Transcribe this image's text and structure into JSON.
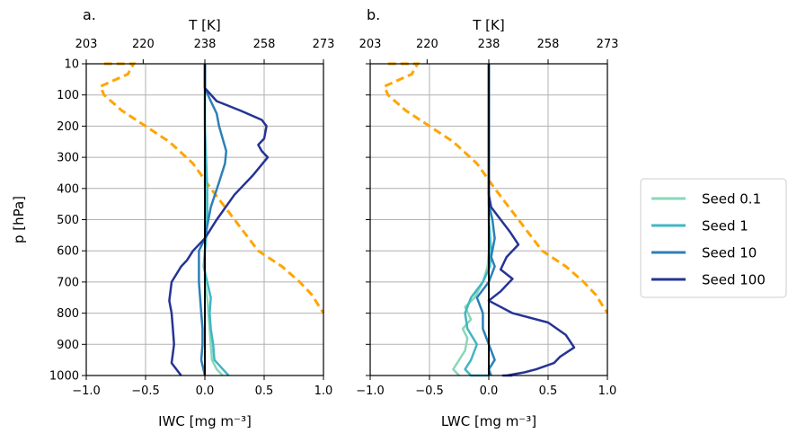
{
  "chart_data": [
    {
      "type": "line",
      "panel_label": "a.",
      "xlabel": "IWC [mg m⁻³]",
      "ylabel": "p [hPa]",
      "top_xlabel": "T [K]",
      "xlim": [
        -1.0,
        1.0
      ],
      "ylim": [
        1000,
        10
      ],
      "x_ticks": [
        "−1.0",
        "−0.5",
        "0.0",
        "0.5",
        "1.0"
      ],
      "y_ticks": [
        "10",
        "100",
        "200",
        "300",
        "400",
        "500",
        "600",
        "700",
        "800",
        "900",
        "1000"
      ],
      "top_ticks": [
        "203",
        "220",
        "238",
        "258",
        "273"
      ],
      "grid": true,
      "zero_line": true,
      "temperature": {
        "color": "#ffa500",
        "style": "dashed",
        "x": [
          -0.85,
          -0.6,
          -0.65,
          -0.88,
          -0.85,
          -0.7,
          -0.5,
          -0.3,
          -0.1,
          0.05,
          0.25,
          0.45,
          0.65,
          0.8,
          0.9,
          1.0
        ],
        "p": [
          10,
          10,
          40,
          75,
          100,
          150,
          200,
          250,
          320,
          400,
          500,
          600,
          650,
          700,
          740,
          800
        ]
      },
      "series": [
        {
          "name": "Seed 0.1",
          "color": "#8ad7b8",
          "x": [
            0.0,
            0.0,
            0.0,
            0.0,
            0.0,
            0.01,
            0.01,
            0.0,
            0.0,
            0.02,
            0.03,
            0.04,
            0.05,
            0.06,
            0.1,
            0.15
          ],
          "p": [
            10,
            80,
            200,
            300,
            400,
            500,
            560,
            600,
            700,
            750,
            800,
            850,
            900,
            950,
            980,
            1000
          ]
        },
        {
          "name": "Seed 1",
          "color": "#41b6c4",
          "x": [
            0.0,
            0.0,
            0.0,
            0.01,
            0.02,
            0.02,
            0.01,
            0.0,
            -0.01,
            0.02,
            0.05,
            0.04,
            0.05,
            0.07,
            0.08,
            0.2
          ],
          "p": [
            10,
            80,
            200,
            300,
            400,
            500,
            560,
            600,
            650,
            700,
            750,
            800,
            850,
            900,
            950,
            1000
          ]
        },
        {
          "name": "Seed 10",
          "color": "#2c7fb8",
          "x": [
            0.0,
            0.0,
            0.05,
            0.1,
            0.12,
            0.15,
            0.18,
            0.17,
            0.12,
            0.05,
            0.0,
            -0.05,
            -0.05,
            -0.03,
            -0.02,
            -0.02,
            -0.03,
            0.0
          ],
          "p": [
            10,
            80,
            120,
            160,
            200,
            240,
            280,
            320,
            380,
            460,
            560,
            600,
            700,
            800,
            850,
            900,
            950,
            1000
          ]
        },
        {
          "name": "Seed 100",
          "color": "#253494",
          "x": [
            0.0,
            0.0,
            0.1,
            0.3,
            0.48,
            0.52,
            0.5,
            0.45,
            0.48,
            0.53,
            0.4,
            0.25,
            0.1,
            0.0,
            -0.1,
            -0.15,
            -0.2,
            -0.28,
            -0.3,
            -0.28,
            -0.27,
            -0.26,
            -0.28,
            -0.2
          ],
          "p": [
            10,
            80,
            120,
            150,
            180,
            200,
            240,
            260,
            280,
            300,
            360,
            420,
            500,
            560,
            600,
            630,
            650,
            700,
            760,
            800,
            850,
            900,
            960,
            1000
          ]
        }
      ]
    },
    {
      "type": "line",
      "panel_label": "b.",
      "xlabel": "LWC [mg m⁻³]",
      "top_xlabel": "T [K]",
      "xlim": [
        -1.0,
        1.0
      ],
      "ylim": [
        1000,
        10
      ],
      "x_ticks": [
        "−1.0",
        "−0.5",
        "0.0",
        "0.5",
        "1.0"
      ],
      "top_ticks": [
        "203",
        "220",
        "238",
        "258",
        "273"
      ],
      "grid": true,
      "zero_line": true,
      "temperature": {
        "color": "#ffa500",
        "style": "dashed",
        "x": [
          -0.85,
          -0.6,
          -0.65,
          -0.88,
          -0.85,
          -0.7,
          -0.5,
          -0.3,
          -0.1,
          0.05,
          0.25,
          0.45,
          0.65,
          0.8,
          0.9,
          1.0
        ],
        "p": [
          10,
          10,
          40,
          75,
          100,
          150,
          200,
          250,
          320,
          400,
          500,
          600,
          650,
          700,
          740,
          800
        ]
      },
      "series": [
        {
          "name": "Seed 0.1",
          "color": "#8ad7b8",
          "x": [
            0.0,
            0.0,
            0.0,
            -0.01,
            -0.05,
            -0.12,
            -0.2,
            -0.15,
            -0.22,
            -0.18,
            -0.2,
            -0.25,
            -0.3,
            -0.25
          ],
          "p": [
            10,
            500,
            600,
            650,
            700,
            750,
            780,
            820,
            850,
            880,
            920,
            950,
            980,
            1000
          ]
        },
        {
          "name": "Seed 1",
          "color": "#41b6c4",
          "x": [
            0.0,
            0.0,
            0.01,
            0.02,
            0.01,
            -0.05,
            -0.15,
            -0.2,
            -0.18,
            -0.1,
            -0.15,
            -0.2,
            -0.15,
            0.0
          ],
          "p": [
            10,
            500,
            550,
            600,
            650,
            700,
            750,
            800,
            850,
            900,
            950,
            980,
            1000,
            1000
          ]
        },
        {
          "name": "Seed 10",
          "color": "#2c7fb8",
          "x": [
            0.0,
            0.0,
            0.03,
            0.05,
            0.02,
            0.05,
            0.0,
            -0.1,
            -0.05,
            -0.05,
            0.0,
            0.05,
            0.0,
            0.02
          ],
          "p": [
            10,
            450,
            500,
            560,
            620,
            650,
            700,
            750,
            800,
            850,
            900,
            950,
            980,
            1000
          ]
        },
        {
          "name": "Seed 100",
          "color": "#253494",
          "x": [
            0.0,
            0.0,
            0.02,
            0.1,
            0.18,
            0.25,
            0.15,
            0.1,
            0.2,
            0.1,
            0.0,
            0.2,
            0.5,
            0.65,
            0.72,
            0.6,
            0.55,
            0.4,
            0.3,
            0.15,
            0.12,
            0.2
          ],
          "p": [
            10,
            420,
            460,
            500,
            540,
            580,
            620,
            660,
            690,
            730,
            760,
            800,
            830,
            870,
            910,
            940,
            960,
            980,
            990,
            1000,
            1000,
            1000
          ]
        }
      ]
    }
  ],
  "legend": {
    "placement": "right",
    "entries": [
      "Seed 0.1",
      "Seed 1",
      "Seed 10",
      "Seed 100"
    ],
    "colors": [
      "#8ad7b8",
      "#41b6c4",
      "#2c7fb8",
      "#253494"
    ]
  }
}
